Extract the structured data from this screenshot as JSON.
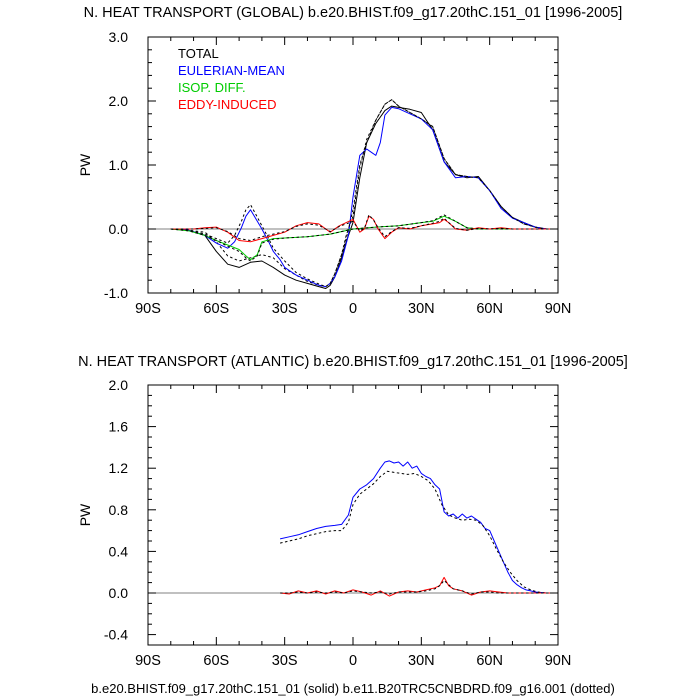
{
  "chart_data": [
    {
      "type": "line",
      "title": "N. HEAT TRANSPORT (GLOBAL) b.e20.BHIST.f09_g17.20thC.151_01 [1996-2005]",
      "xlabel": "",
      "ylabel": "PW",
      "xlim": [
        -90,
        90
      ],
      "ylim": [
        -1.0,
        3.0
      ],
      "x_ticks": [
        -90,
        -60,
        -30,
        0,
        30,
        60,
        90
      ],
      "x_tick_labels": [
        "90S",
        "60S",
        "30S",
        "0",
        "30N",
        "60N",
        "90N"
      ],
      "y_ticks": [
        -1.0,
        0.0,
        1.0,
        2.0,
        3.0
      ],
      "y_tick_labels": [
        "-1.0",
        "0.0",
        "1.0",
        "2.0",
        "3.0"
      ],
      "legend": [
        "TOTAL",
        "EULERIAN-MEAN",
        "ISOP. DIFF.",
        "EDDY-INDUCED"
      ],
      "legend_position": "top-left",
      "zero_line": true,
      "colors": {
        "TOTAL": "#000000",
        "EULERIAN-MEAN": "#0000ff",
        "ISOP. DIFF.": "#00cc00",
        "EDDY-INDUCED": "#ff0000"
      },
      "series": [
        {
          "name": "TOTAL",
          "style": "solid",
          "color": "#000000",
          "x": [
            -80,
            -72,
            -65,
            -60,
            -55,
            -50,
            -45,
            -40,
            -35,
            -30,
            -25,
            -20,
            -15,
            -12,
            -10,
            -8,
            -5,
            -3,
            0,
            3,
            6,
            10,
            14,
            17,
            20,
            25,
            30,
            35,
            40,
            45,
            50,
            55,
            60,
            65,
            70,
            75,
            80,
            85,
            90
          ],
          "y": [
            0,
            -0.02,
            -0.1,
            -0.35,
            -0.55,
            -0.6,
            -0.52,
            -0.5,
            -0.6,
            -0.72,
            -0.8,
            -0.85,
            -0.9,
            -0.93,
            -0.88,
            -0.75,
            -0.45,
            -0.2,
            0.1,
            0.8,
            1.35,
            1.65,
            1.85,
            1.92,
            1.9,
            1.87,
            1.82,
            1.55,
            1.05,
            0.85,
            0.8,
            0.82,
            0.6,
            0.35,
            0.18,
            0.1,
            0.03,
            0,
            0
          ]
        },
        {
          "name": "TOTAL",
          "style": "dotted",
          "color": "#000000",
          "x": [
            -80,
            -72,
            -65,
            -60,
            -55,
            -50,
            -45,
            -40,
            -35,
            -30,
            -25,
            -20,
            -15,
            -12,
            -10,
            -8,
            -5,
            -3,
            0,
            3,
            6,
            10,
            14,
            17,
            20,
            25,
            30,
            35,
            40,
            45,
            50,
            55,
            60,
            65,
            70,
            75,
            80,
            85,
            90
          ],
          "y": [
            0,
            -0.02,
            -0.05,
            -0.2,
            -0.42,
            -0.5,
            -0.45,
            -0.4,
            -0.45,
            -0.62,
            -0.72,
            -0.82,
            -0.88,
            -0.9,
            -0.85,
            -0.7,
            -0.4,
            -0.1,
            0.2,
            0.95,
            1.4,
            1.7,
            1.95,
            2.02,
            1.92,
            1.82,
            1.72,
            1.6,
            1.1,
            0.85,
            0.82,
            0.8,
            0.6,
            0.35,
            0.18,
            0.08,
            0.03,
            0,
            0
          ]
        },
        {
          "name": "EULERIAN-MEAN",
          "style": "solid",
          "color": "#0000ff",
          "x": [
            -80,
            -72,
            -65,
            -60,
            -55,
            -52,
            -49,
            -47,
            -45,
            -43,
            -40,
            -37,
            -35,
            -32,
            -30,
            -25,
            -20,
            -15,
            -12,
            -10,
            -8,
            -5,
            -2,
            0,
            3,
            6,
            8,
            10,
            12,
            14,
            17,
            20,
            25,
            30,
            35,
            40,
            45,
            50,
            55,
            60,
            65,
            70,
            75,
            80,
            85,
            90
          ],
          "y": [
            0,
            -0.02,
            -0.1,
            -0.22,
            -0.3,
            -0.2,
            0.02,
            0.2,
            0.3,
            0.18,
            0,
            -0.2,
            -0.35,
            -0.48,
            -0.6,
            -0.72,
            -0.8,
            -0.88,
            -0.9,
            -0.85,
            -0.75,
            -0.5,
            -0.1,
            0.5,
            1.15,
            1.25,
            1.2,
            1.15,
            1.35,
            1.78,
            1.9,
            1.88,
            1.8,
            1.72,
            1.55,
            1.05,
            0.8,
            0.82,
            0.8,
            0.6,
            0.32,
            0.17,
            0.1,
            0.03,
            0,
            0
          ]
        },
        {
          "name": "EULERIAN-MEAN",
          "style": "dotted",
          "color": "#000000",
          "x": [
            -80,
            -72,
            -65,
            -60,
            -55,
            -52,
            -49,
            -47,
            -45,
            -43,
            -40,
            -37,
            -35,
            -30,
            -25,
            -20,
            -15,
            -12,
            -10,
            -8,
            -5,
            -3,
            0,
            3,
            6,
            10,
            14,
            17,
            20,
            25,
            30,
            35,
            40,
            45,
            50,
            55,
            60,
            65,
            70,
            75,
            80,
            85,
            90
          ],
          "y": [
            0,
            -0.02,
            -0.08,
            -0.15,
            -0.22,
            -0.1,
            0.12,
            0.3,
            0.38,
            0.25,
            0.05,
            -0.15,
            -0.3,
            -0.5,
            -0.68,
            -0.78,
            -0.86,
            -0.9,
            -0.85,
            -0.7,
            -0.4,
            -0.15,
            0.3,
            1.0,
            1.35,
            1.7,
            1.95,
            2.02,
            1.92,
            1.82,
            1.72,
            1.6,
            1.1,
            0.85,
            0.82,
            0.8,
            0.6,
            0.35,
            0.18,
            0.08,
            0.03,
            0,
            0
          ]
        },
        {
          "name": "ISOP. DIFF.",
          "style": "solid",
          "color": "#00cc00",
          "x": [
            -80,
            -72,
            -65,
            -60,
            -55,
            -50,
            -47,
            -45,
            -42,
            -40,
            -35,
            -30,
            -20,
            -10,
            0,
            10,
            20,
            30,
            35,
            40,
            45,
            50,
            55,
            60,
            70,
            80,
            90
          ],
          "y": [
            0,
            -0.03,
            -0.1,
            -0.18,
            -0.25,
            -0.32,
            -0.42,
            -0.48,
            -0.4,
            -0.2,
            -0.15,
            -0.14,
            -0.12,
            -0.08,
            0,
            0.03,
            0.05,
            0.1,
            0.12,
            0.2,
            0.12,
            0.02,
            0,
            0,
            0,
            0,
            0
          ]
        },
        {
          "name": "ISOP. DIFF.",
          "style": "dotted",
          "color": "#000000",
          "x": [
            -80,
            -72,
            -65,
            -60,
            -55,
            -50,
            -47,
            -45,
            -42,
            -40,
            -35,
            -30,
            -20,
            -10,
            0,
            10,
            20,
            30,
            35,
            40,
            45,
            50,
            55,
            60,
            70,
            80,
            90
          ],
          "y": [
            0,
            -0.03,
            -0.1,
            -0.18,
            -0.27,
            -0.35,
            -0.45,
            -0.5,
            -0.42,
            -0.22,
            -0.16,
            -0.14,
            -0.12,
            -0.08,
            0,
            0.03,
            0.05,
            0.1,
            0.13,
            0.22,
            0.12,
            0.02,
            0,
            0,
            0,
            0,
            0
          ]
        },
        {
          "name": "EDDY-INDUCED",
          "style": "solid",
          "color": "#ff0000",
          "x": [
            -80,
            -70,
            -65,
            -60,
            -55,
            -50,
            -45,
            -40,
            -35,
            -30,
            -25,
            -20,
            -15,
            -10,
            -6,
            -3,
            0,
            3,
            5,
            7,
            9,
            11,
            14,
            17,
            20,
            25,
            30,
            35,
            38,
            40,
            42,
            45,
            50,
            55,
            60,
            65,
            70,
            80,
            90
          ],
          "y": [
            0,
            0,
            0.02,
            0.03,
            -0.05,
            -0.18,
            -0.2,
            -0.15,
            -0.1,
            -0.05,
            0.05,
            0.1,
            0.08,
            -0.05,
            0.05,
            0.1,
            0.15,
            -0.05,
            0,
            0.2,
            0.15,
            0,
            -0.15,
            -0.05,
            0.02,
            0,
            0.05,
            0.08,
            0.1,
            0.15,
            0.1,
            0,
            -0.02,
            0.02,
            0,
            0.02,
            0,
            0,
            0
          ]
        },
        {
          "name": "EDDY-INDUCED",
          "style": "dotted",
          "color": "#000000",
          "x": [
            -80,
            -70,
            -65,
            -60,
            -55,
            -50,
            -45,
            -40,
            -35,
            -30,
            -25,
            -20,
            -15,
            -10,
            -6,
            -3,
            0,
            3,
            5,
            7,
            9,
            11,
            14,
            17,
            20,
            25,
            30,
            35,
            38,
            40,
            42,
            45,
            50,
            55,
            60,
            65,
            70,
            80,
            90
          ],
          "y": [
            0,
            0,
            0.01,
            0.02,
            -0.04,
            -0.15,
            -0.18,
            -0.12,
            -0.08,
            -0.04,
            0.04,
            0.08,
            0.06,
            -0.04,
            0.04,
            0.08,
            0.12,
            -0.03,
            0.01,
            0.22,
            0.14,
            0.02,
            -0.12,
            -0.04,
            0.02,
            0.01,
            0.05,
            0.09,
            0.12,
            0.17,
            0.1,
            0.01,
            -0.02,
            0.01,
            0,
            0.01,
            0,
            0,
            0
          ]
        }
      ]
    },
    {
      "type": "line",
      "title": "N. HEAT TRANSPORT (ATLANTIC) b.e20.BHIST.f09_g17.20thC.151_01 [1996-2005]",
      "xlabel": "b.e20.BHIST.f09_g17.20thC.151_01 (solid) b.e11.B20TRC5CNBDRD.f09_g16.001 (dotted)",
      "ylabel": "PW",
      "xlim": [
        -90,
        90
      ],
      "ylim": [
        -0.5,
        2.0
      ],
      "x_ticks": [
        -90,
        -60,
        -30,
        0,
        30,
        60,
        90
      ],
      "x_tick_labels": [
        "90S",
        "60S",
        "30S",
        "0",
        "30N",
        "60N",
        "90N"
      ],
      "y_ticks": [
        -0.4,
        0.0,
        0.4,
        0.8,
        1.2,
        1.6,
        2.0
      ],
      "y_tick_labels": [
        "-0.4",
        "0.0",
        "0.4",
        "0.8",
        "1.2",
        "1.6",
        "2.0"
      ],
      "zero_line": true,
      "series": [
        {
          "name": "EULERIAN-MEAN",
          "style": "solid",
          "color": "#0000ff",
          "x": [
            -32,
            -28,
            -24,
            -20,
            -16,
            -12,
            -8,
            -5,
            -2,
            0,
            3,
            6,
            9,
            12,
            14,
            16,
            18,
            20,
            22,
            24,
            26,
            28,
            30,
            32,
            34,
            36,
            38,
            40,
            42,
            44,
            46,
            48,
            50,
            52,
            54,
            56,
            58,
            60,
            62,
            64,
            66,
            68,
            70,
            72,
            74,
            76,
            78,
            80,
            85,
            90
          ],
          "y": [
            0.52,
            0.54,
            0.56,
            0.59,
            0.62,
            0.64,
            0.65,
            0.66,
            0.75,
            0.92,
            1.0,
            1.04,
            1.1,
            1.2,
            1.26,
            1.27,
            1.25,
            1.26,
            1.22,
            1.26,
            1.2,
            1.22,
            1.15,
            1.12,
            1.1,
            1.04,
            1.0,
            0.78,
            0.74,
            0.76,
            0.72,
            0.76,
            0.72,
            0.74,
            0.71,
            0.68,
            0.62,
            0.6,
            0.5,
            0.4,
            0.3,
            0.2,
            0.12,
            0.08,
            0.05,
            0.03,
            0.02,
            0.01,
            0,
            0
          ]
        },
        {
          "name": "EULERIAN-MEAN",
          "style": "dotted",
          "color": "#000000",
          "x": [
            -32,
            -28,
            -24,
            -20,
            -16,
            -12,
            -8,
            -5,
            -2,
            0,
            3,
            6,
            9,
            12,
            15,
            18,
            21,
            24,
            27,
            30,
            33,
            36,
            39,
            42,
            45,
            48,
            51,
            54,
            57,
            60,
            63,
            66,
            69,
            72,
            75,
            78,
            81,
            85,
            90
          ],
          "y": [
            0.48,
            0.5,
            0.52,
            0.55,
            0.57,
            0.59,
            0.6,
            0.6,
            0.68,
            0.85,
            0.95,
            1.0,
            1.05,
            1.12,
            1.17,
            1.16,
            1.15,
            1.14,
            1.15,
            1.12,
            1.08,
            1.0,
            0.85,
            0.75,
            0.72,
            0.7,
            0.71,
            0.7,
            0.65,
            0.55,
            0.42,
            0.3,
            0.2,
            0.12,
            0.06,
            0.03,
            0.01,
            0,
            0
          ]
        },
        {
          "name": "EDDY-INDUCED",
          "style": "solid",
          "color": "#ff0000",
          "x": [
            -32,
            -28,
            -24,
            -20,
            -16,
            -12,
            -8,
            -4,
            0,
            4,
            8,
            12,
            16,
            20,
            24,
            28,
            32,
            36,
            38,
            40,
            42,
            44,
            48,
            52,
            56,
            60,
            64,
            68,
            72,
            76,
            80,
            85,
            90
          ],
          "y": [
            0,
            -0.01,
            0.02,
            0,
            0.02,
            -0.01,
            0.02,
            0,
            0.03,
            0.01,
            -0.02,
            0.02,
            -0.03,
            0.01,
            0.02,
            0.01,
            0.03,
            0.05,
            0.07,
            0.15,
            0.07,
            0.04,
            0.02,
            -0.02,
            0.01,
            0.02,
            0.01,
            0,
            0,
            0,
            0,
            0,
            0
          ]
        },
        {
          "name": "EDDY-INDUCED",
          "style": "dotted",
          "color": "#000000",
          "x": [
            -32,
            -28,
            -24,
            -20,
            -16,
            -12,
            -8,
            -4,
            0,
            4,
            8,
            12,
            16,
            20,
            24,
            28,
            32,
            36,
            38,
            40,
            42,
            44,
            48,
            52,
            56,
            60,
            64,
            68,
            72,
            76,
            80,
            85,
            90
          ],
          "y": [
            0,
            0,
            0.01,
            0,
            0.01,
            0,
            0.01,
            0,
            0.02,
            0.01,
            0,
            0.01,
            -0.01,
            0.01,
            0.01,
            0.01,
            0.02,
            0.04,
            0.07,
            0.12,
            0.08,
            0.04,
            0.02,
            -0.01,
            0.01,
            0.01,
            0,
            0,
            0,
            0,
            0,
            0,
            0
          ]
        }
      ]
    }
  ]
}
